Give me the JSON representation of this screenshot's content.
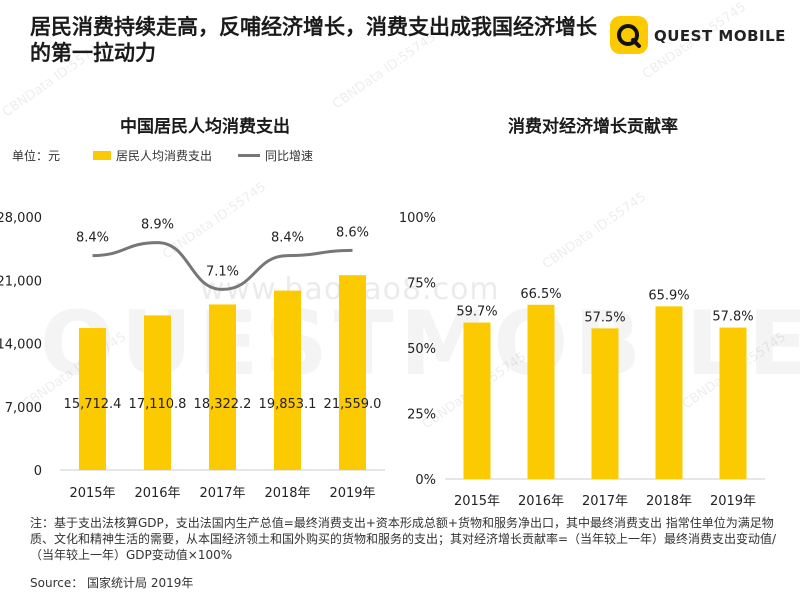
{
  "title": "居民消费持续走高，反哺经济增长，消费支出成我国经济增长的第一拉动力",
  "logo_text": "QUEST MOBILE",
  "watermark_id": "CBNData ID:55745",
  "watermark_site": "www.baogao8.com",
  "watermark_brand": "QUESTMOBILE",
  "unit_label": "单位：元",
  "legend": {
    "bar": "居民人均消费支出",
    "line": "同比增速"
  },
  "colors": {
    "bar": "#FCCA00",
    "line": "#777777"
  },
  "chart_data": [
    {
      "type": "bar",
      "title": "中国居民人均消费支出",
      "categories": [
        "2015年",
        "2016年",
        "2017年",
        "2018年",
        "2019年"
      ],
      "values": [
        15712.4,
        17110.8,
        18322.2,
        19853.1,
        21559.0
      ],
      "value_labels": [
        "15,712.4",
        "17,110.8",
        "18,322.2",
        "19,853.1",
        "21,559.0"
      ],
      "yticks": [
        "0",
        "7,000",
        "14,000",
        "21,000",
        "28,000"
      ],
      "ylim": [
        0,
        28000
      ],
      "grid": false,
      "series": [
        {
          "name": "居民人均消费支出",
          "type": "bar",
          "values": [
            15712.4,
            17110.8,
            18322.2,
            19853.1,
            21559.0
          ]
        },
        {
          "name": "同比增速",
          "type": "line",
          "values": [
            8.4,
            8.9,
            7.1,
            8.4,
            8.6
          ],
          "labels": [
            "8.4%",
            "8.9%",
            "7.1%",
            "8.4%",
            "8.6%"
          ]
        }
      ]
    },
    {
      "type": "bar",
      "title": "消费对经济增长贡献率",
      "categories": [
        "2015年",
        "2016年",
        "2017年",
        "2018年",
        "2019年"
      ],
      "values": [
        59.7,
        66.5,
        57.5,
        65.9,
        57.8
      ],
      "value_labels": [
        "59.7%",
        "66.5%",
        "57.5%",
        "65.9%",
        "57.8%"
      ],
      "yticks": [
        "0%",
        "25%",
        "50%",
        "75%",
        "100%"
      ],
      "ylim": [
        0,
        100
      ],
      "grid": false
    }
  ],
  "note": "注：基于支出法核算GDP，支出法国内生产总值=最终消费支出+资本形成总额+货物和服务净出口，其中最终消费支出 指常住单位为满足物质、文化和精神生活的需要，从本国经济领土和国外购买的货物和服务的支出；其对经济增长贡献率=（当年较上一年）最终消费支出变动值/（当年较上一年）GDP变动值×100%",
  "source": "Source： 国家统计局 2019年"
}
